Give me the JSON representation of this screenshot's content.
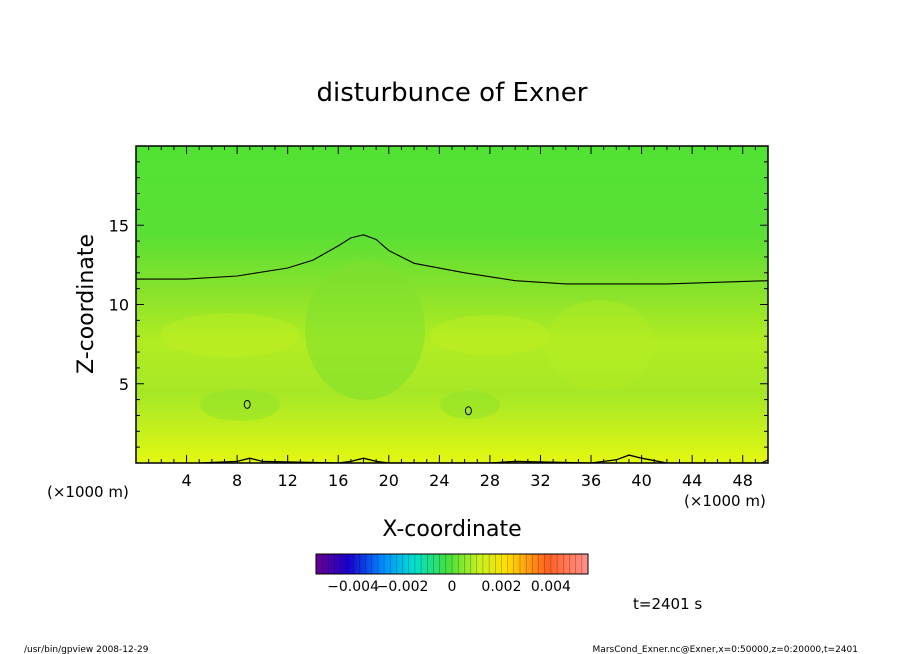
{
  "chart_data": {
    "type": "heatmap",
    "title": "disturbunce of Exner",
    "xlabel": "X-coordinate",
    "ylabel": "Z-coordinate",
    "x_unit_left": "(×1000 m)",
    "x_unit_right": "(×1000 m)",
    "xlim": [
      0,
      50
    ],
    "ylim": [
      0,
      20
    ],
    "x_ticks": [
      4,
      8,
      12,
      16,
      20,
      24,
      28,
      32,
      36,
      40,
      44,
      48
    ],
    "x_tick_labels": [
      "4",
      "8",
      "12",
      "16",
      "20",
      "24",
      "28",
      "32",
      "36",
      "40",
      "44",
      "48"
    ],
    "y_ticks": [
      5,
      10,
      15
    ],
    "y_tick_labels": [
      "5",
      "10",
      "15"
    ],
    "colorbar": {
      "range": [
        -0.0055,
        0.0055
      ],
      "tick_values": [
        -0.004,
        -0.002,
        0,
        0.002,
        0.004
      ],
      "tick_labels": [
        "−0.004",
        "−0.002",
        "0",
        "0.002",
        "0.004"
      ]
    },
    "contour_top": {
      "x": [
        0,
        4,
        8,
        12,
        14,
        16,
        17,
        18,
        19,
        20,
        22,
        26,
        30,
        34,
        38,
        42,
        46,
        50
      ],
      "y": [
        11.6,
        11.6,
        11.8,
        12.3,
        12.8,
        13.7,
        14.2,
        14.4,
        14.1,
        13.4,
        12.6,
        12.0,
        11.5,
        11.3,
        11.3,
        11.3,
        11.4,
        11.5
      ]
    },
    "contour_loops": [
      {
        "x": 8.8,
        "y": 3.7
      },
      {
        "x": 26.3,
        "y": 3.3
      }
    ],
    "contour_bottom": {
      "x": [
        5,
        8,
        9,
        10,
        16,
        17,
        18,
        19,
        20,
        28,
        30,
        36,
        38,
        39,
        40,
        42,
        49.5,
        50
      ],
      "y": [
        0.0,
        0.1,
        0.3,
        0.1,
        0.0,
        0.1,
        0.3,
        0.1,
        0.0,
        0.0,
        0.1,
        0.0,
        0.2,
        0.5,
        0.3,
        0.0,
        0.0,
        0.2
      ]
    },
    "time_label": "t=2401 s"
  },
  "footer": {
    "left": "/usr/bin/gpview   2008-12-29",
    "right": "MarsCond_Exner.nc@Exner,x=0:50000,z=0:20000,t=2401"
  }
}
